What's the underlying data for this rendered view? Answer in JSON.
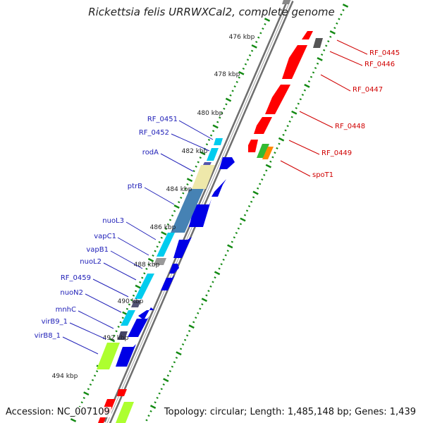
{
  "title": "Rickettsia felis URRWXCal2, complete genome",
  "accession": "Accession: NC_007109",
  "topology": "Topology: circular; Length: 1,485,148 bp; Genes: 1,439",
  "ruler": {
    "unit": "kbp",
    "labels": [
      "476 kbp",
      "478 kbp",
      "480 kbp",
      "482 kbp",
      "484 kbp",
      "486 kbp",
      "488 kbp",
      "490 kbp",
      "492 kbp",
      "494 kbp"
    ]
  },
  "genes": [
    {
      "name": "RF_0451",
      "color": "#2020b8"
    },
    {
      "name": "RF_0452",
      "color": "#2020b8"
    },
    {
      "name": "rodA",
      "color": "#2020b8"
    },
    {
      "name": "ptrB",
      "color": "#2020b8"
    },
    {
      "name": "nuoL3",
      "color": "#2020b8"
    },
    {
      "name": "vapC1",
      "color": "#2020b8"
    },
    {
      "name": "vapB1",
      "color": "#2020b8"
    },
    {
      "name": "nuoL2",
      "color": "#2020b8"
    },
    {
      "name": "RF_0459",
      "color": "#2020b8"
    },
    {
      "name": "nuoN2",
      "color": "#2020b8"
    },
    {
      "name": "mnhC",
      "color": "#2020b8"
    },
    {
      "name": "virB9_1",
      "color": "#2020b8"
    },
    {
      "name": "virB8_1",
      "color": "#2020b8"
    },
    {
      "name": "RF_0445",
      "color": "#d00000"
    },
    {
      "name": "RF_0446",
      "color": "#d00000"
    },
    {
      "name": "RF_0447",
      "color": "#d00000"
    },
    {
      "name": "RF_0448",
      "color": "#d00000"
    },
    {
      "name": "RF_0449",
      "color": "#d00000"
    },
    {
      "name": "spoT1",
      "color": "#d00000"
    }
  ],
  "colors": {
    "backbone": "#6e6e6e",
    "forward_cds": "#0000e6",
    "reverse_cds": "#ff0000",
    "tick": "#138a13",
    "gray_feature": "#555555"
  }
}
